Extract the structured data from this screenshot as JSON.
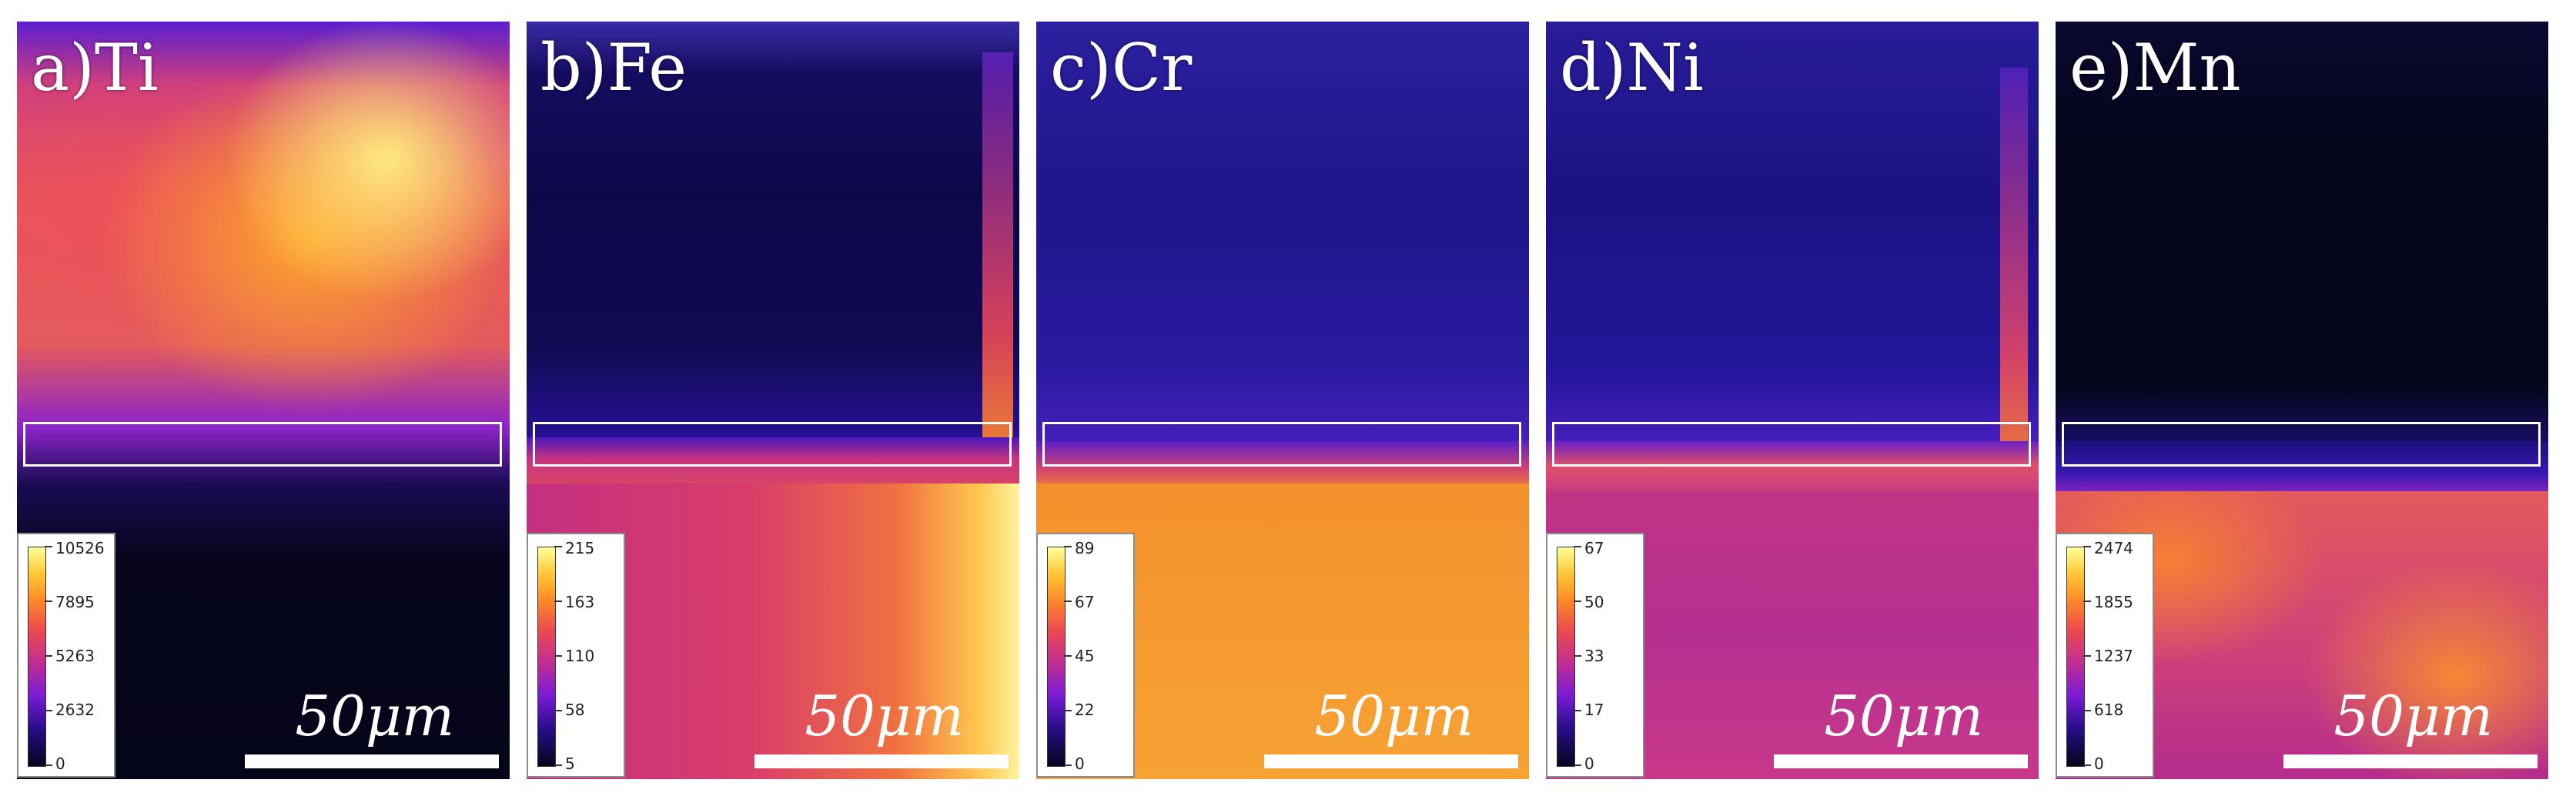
{
  "panels": [
    {
      "label": "a)Ti",
      "scale_label": "50μm",
      "colorbar_ticks": [
        "10526",
        "7895",
        "5263",
        "2632",
        "0"
      ]
    },
    {
      "label": "b)Fe",
      "scale_label": "50μm",
      "colorbar_ticks": [
        "215",
        "163",
        "110",
        "58",
        "5"
      ]
    },
    {
      "label": "c)Cr",
      "scale_label": "50μm",
      "colorbar_ticks": [
        "89",
        "67",
        "45",
        "22",
        "0"
      ]
    },
    {
      "label": "d)Ni",
      "scale_label": "50μm",
      "colorbar_ticks": [
        "67",
        "50",
        "33",
        "17",
        "0"
      ]
    },
    {
      "label": "e)Mn",
      "scale_label": "50μm",
      "colorbar_ticks": [
        "2474",
        "1855",
        "1237",
        "618",
        "0"
      ]
    }
  ],
  "colors": {
    "background": "#ffffff",
    "map_dark": "#06061a",
    "roi_box": "#ffffff",
    "colormap": [
      "#05041c",
      "#2b0e8e",
      "#7a1bd6",
      "#c42f8f",
      "#ee4a4f",
      "#ff8a26",
      "#ffc833",
      "#ffff9a"
    ]
  }
}
